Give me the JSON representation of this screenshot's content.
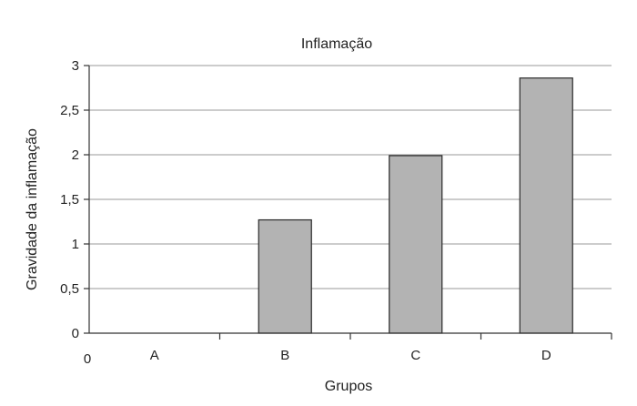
{
  "chart_data": {
    "type": "bar",
    "title": "Inflamação",
    "xlabel": "Grupos",
    "ylabel": "Gravidade da inflamação",
    "categories": [
      "A",
      "B",
      "C",
      "D"
    ],
    "values": [
      0,
      1.27,
      1.99,
      2.86
    ],
    "ylim": [
      0,
      3
    ],
    "yticks": [
      0,
      0.5,
      1,
      1.5,
      2,
      2.5,
      3
    ],
    "ytick_labels": [
      "0",
      "0,5",
      "1",
      "1,5",
      "2",
      "2,5",
      "3"
    ],
    "x_origin_label": "0",
    "grid": true,
    "bar_color": "#b3b3b3"
  }
}
